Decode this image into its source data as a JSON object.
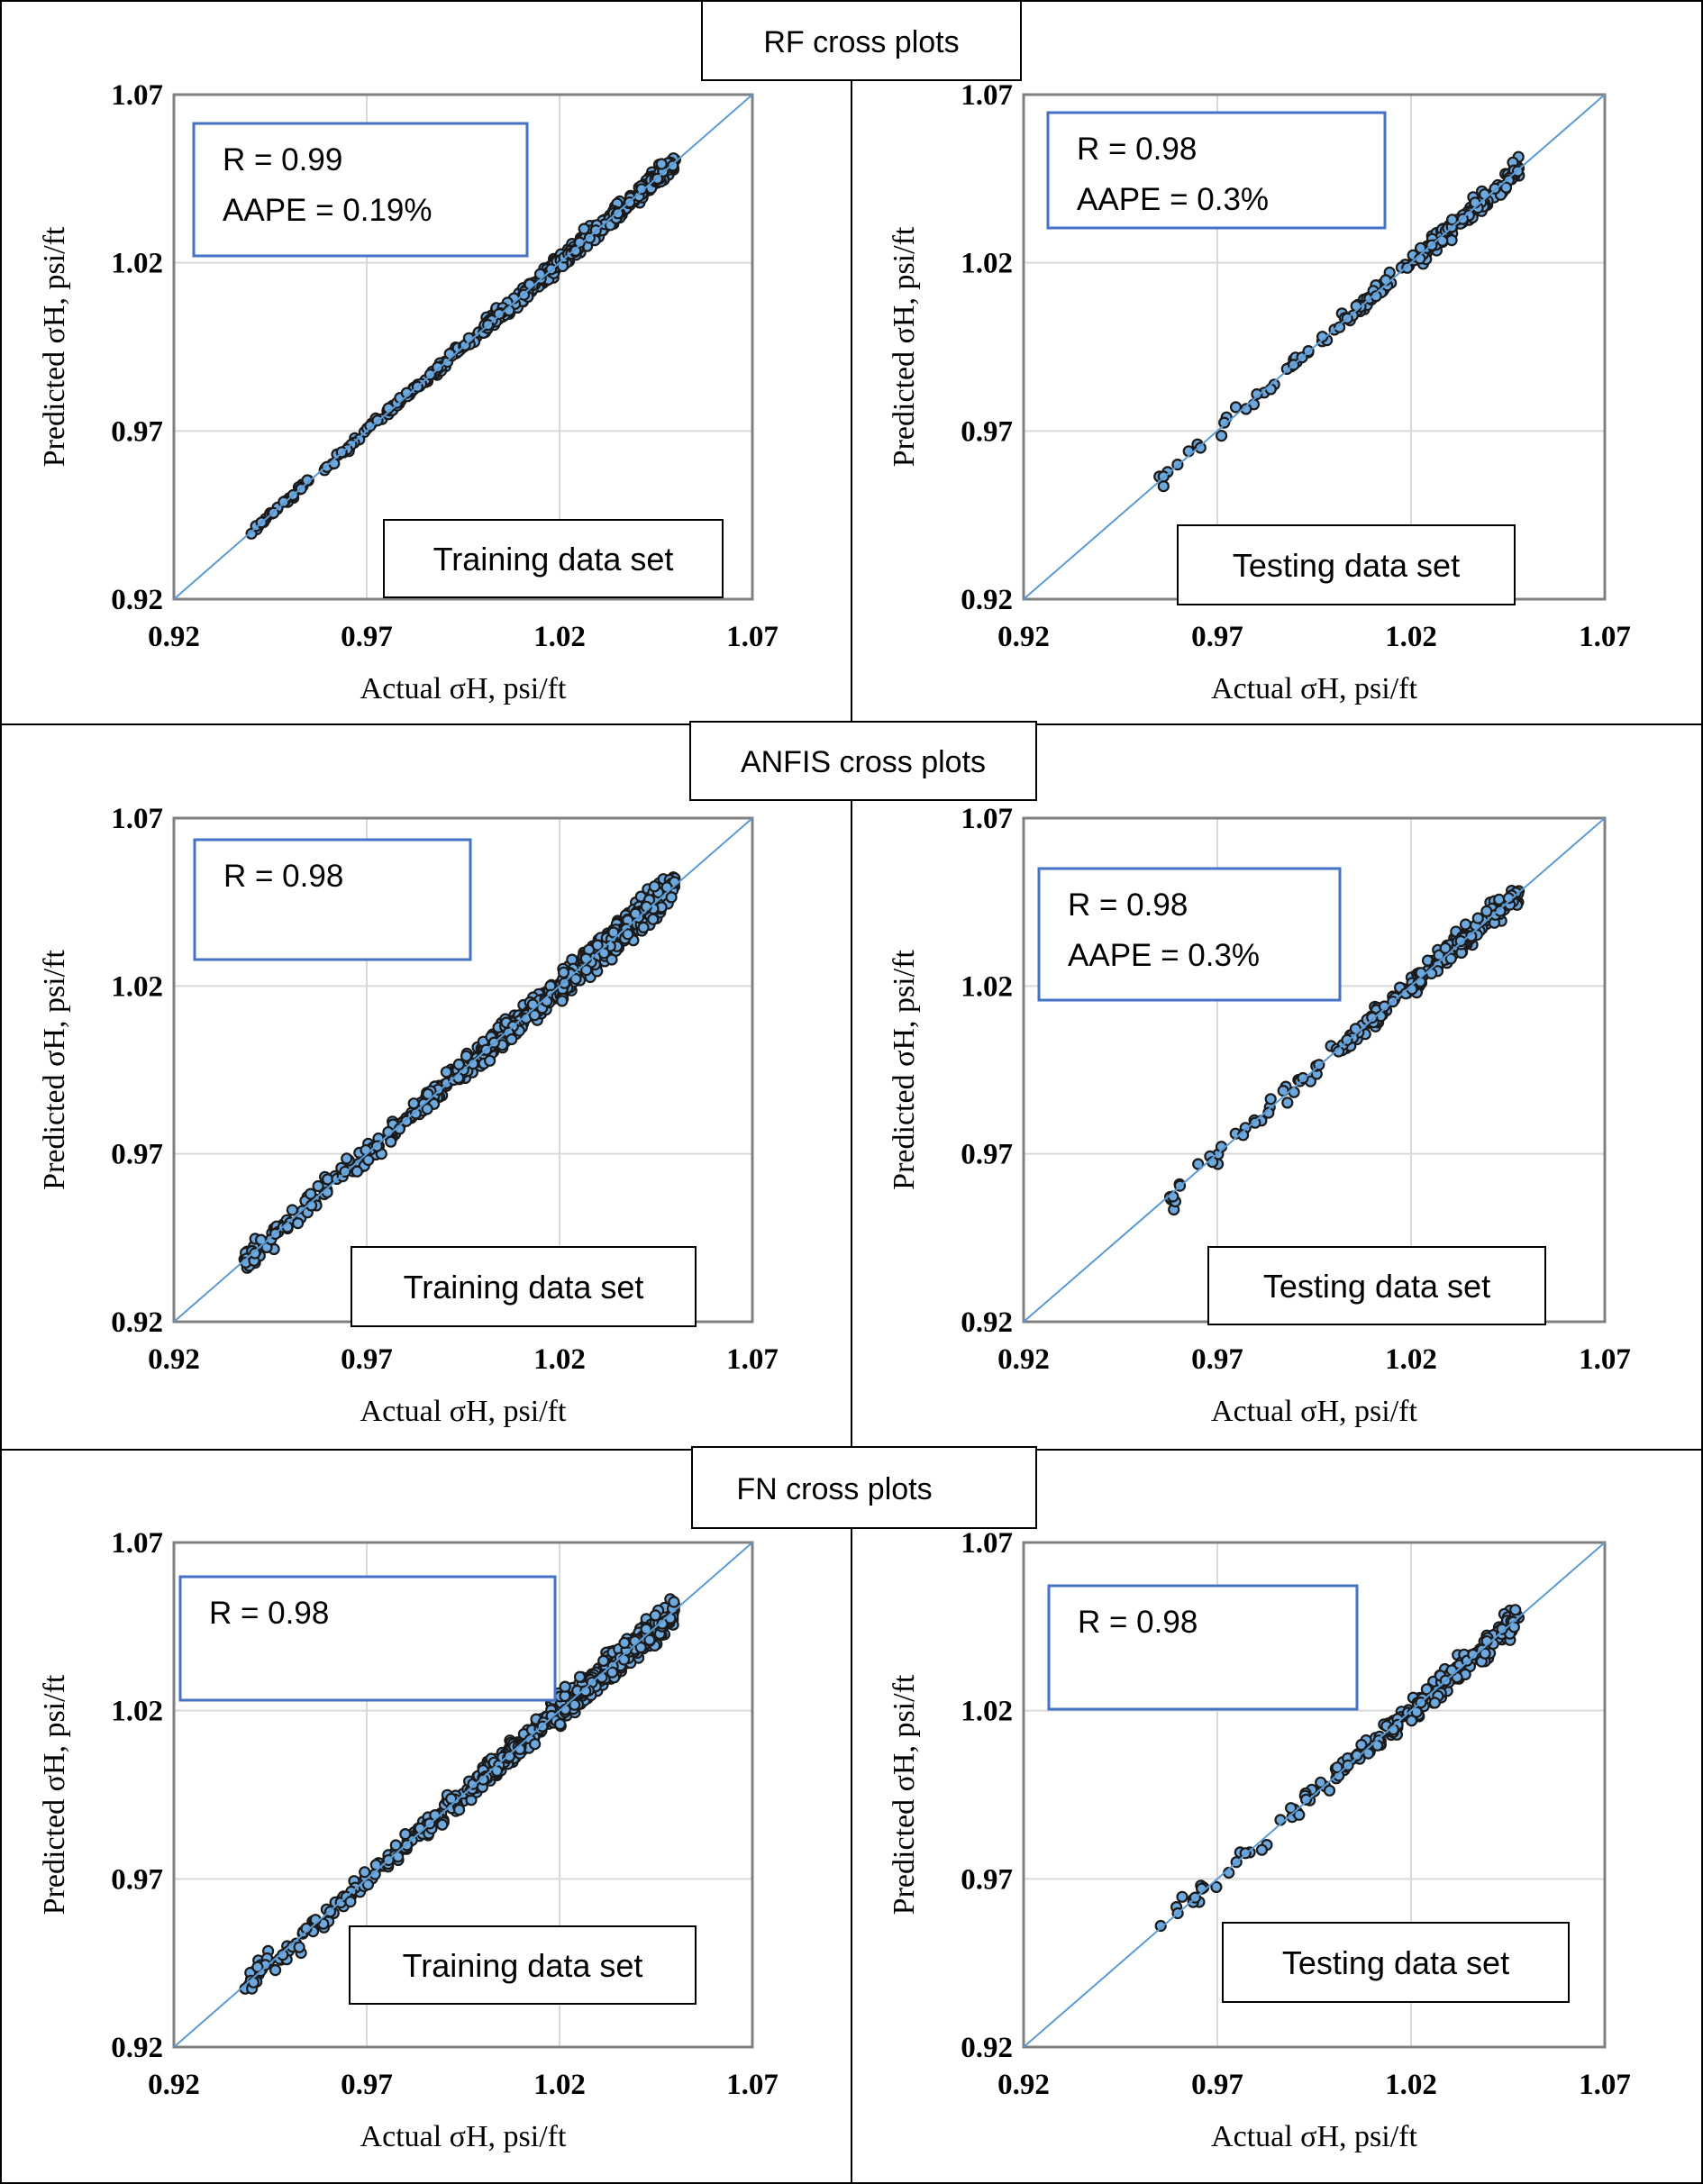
{
  "colors": {
    "frame": "#000000",
    "axis": "#808080",
    "grid": "#d9d9d9",
    "marker_fill": "#6fa8dc",
    "marker_edge": "#1a1a1a",
    "fit_line": "#5b9bd5",
    "stat_box": "#4472c4"
  },
  "sections": [
    {
      "title": "RF cross plots"
    },
    {
      "title": "ANFIS cross plots"
    },
    {
      "title": "FN cross plots"
    }
  ],
  "chart_data": [
    {
      "type": "scatter",
      "model": "RF",
      "dataset": "Training data set",
      "stats": [
        "R = 0.99",
        "AAPE = 0.19%"
      ],
      "title": "",
      "xlabel": "Actual σH, psi/ft",
      "ylabel": "Predicted σH, psi/ft",
      "xlim": [
        0.92,
        1.07
      ],
      "ylim": [
        0.92,
        1.07
      ],
      "xticks": [
        "0.92",
        "0.97",
        "1.02",
        "1.07"
      ],
      "yticks": [
        "0.92",
        "0.97",
        "1.02",
        "1.07"
      ],
      "grid": true,
      "diagonal": [
        0.92,
        1.07
      ],
      "clusters": [
        {
          "x": [
            0.94,
            0.948
          ],
          "spread": 0.0008,
          "count": 14
        },
        {
          "x": [
            0.948,
            0.975
          ],
          "spread": 0.001,
          "count": 40
        },
        {
          "x": [
            0.975,
            1.0
          ],
          "spread": 0.0012,
          "count": 70
        },
        {
          "x": [
            1.0,
            1.02
          ],
          "spread": 0.002,
          "count": 140
        },
        {
          "x": [
            1.02,
            1.05
          ],
          "spread": 0.0025,
          "count": 260
        }
      ]
    },
    {
      "type": "scatter",
      "model": "RF",
      "dataset": "Testing data set",
      "stats": [
        "R = 0.98",
        "AAPE = 0.3%"
      ],
      "title": "",
      "xlabel": "Actual σH, psi/ft",
      "ylabel": "Predicted σH, psi/ft",
      "xlim": [
        0.92,
        1.07
      ],
      "ylim": [
        0.92,
        1.07
      ],
      "xticks": [
        "0.92",
        "0.97",
        "1.02",
        "1.07"
      ],
      "yticks": [
        "0.92",
        "0.97",
        "1.02",
        "1.07"
      ],
      "grid": true,
      "diagonal": [
        0.92,
        1.07
      ],
      "clusters": [
        {
          "x": [
            0.955,
            0.975
          ],
          "spread": 0.003,
          "count": 12
        },
        {
          "x": [
            0.975,
            1.0
          ],
          "spread": 0.0025,
          "count": 18
        },
        {
          "x": [
            1.0,
            1.02
          ],
          "spread": 0.0025,
          "count": 40
        },
        {
          "x": [
            1.02,
            1.048
          ],
          "spread": 0.0032,
          "count": 120
        }
      ]
    },
    {
      "type": "scatter",
      "model": "ANFIS",
      "dataset": "Training data set",
      "stats": [
        "R = 0.98"
      ],
      "title": "",
      "xlabel": "Actual σH, psi/ft",
      "ylabel": "Predicted σH, psi/ft",
      "xlim": [
        0.92,
        1.07
      ],
      "ylim": [
        0.92,
        1.07
      ],
      "xticks": [
        "0.92",
        "0.97",
        "1.02",
        "1.07"
      ],
      "yticks": [
        "0.92",
        "0.97",
        "1.02",
        "1.07"
      ],
      "grid": true,
      "diagonal": [
        0.92,
        1.07
      ],
      "clusters": [
        {
          "x": [
            0.938,
            0.946
          ],
          "spread": 0.004,
          "count": 25
        },
        {
          "x": [
            0.946,
            0.975
          ],
          "spread": 0.0035,
          "count": 60
        },
        {
          "x": [
            0.975,
            1.0
          ],
          "spread": 0.003,
          "count": 90
        },
        {
          "x": [
            1.0,
            1.02
          ],
          "spread": 0.0035,
          "count": 180
        },
        {
          "x": [
            1.02,
            1.05
          ],
          "spread": 0.004,
          "count": 320
        }
      ]
    },
    {
      "type": "scatter",
      "model": "ANFIS",
      "dataset": "Testing data set",
      "stats": [
        "R = 0.98",
        "AAPE = 0.3%"
      ],
      "title": "",
      "xlabel": "Actual σH, psi/ft",
      "ylabel": "Predicted σH, psi/ft",
      "xlim": [
        0.92,
        1.07
      ],
      "ylim": [
        0.92,
        1.07
      ],
      "xticks": [
        "0.92",
        "0.97",
        "1.02",
        "1.07"
      ],
      "yticks": [
        "0.92",
        "0.97",
        "1.02",
        "1.07"
      ],
      "grid": true,
      "diagonal": [
        0.92,
        1.07
      ],
      "clusters": [
        {
          "x": [
            0.955,
            0.975
          ],
          "spread": 0.004,
          "count": 14
        },
        {
          "x": [
            0.975,
            1.0
          ],
          "spread": 0.003,
          "count": 20
        },
        {
          "x": [
            1.0,
            1.02
          ],
          "spread": 0.003,
          "count": 45
        },
        {
          "x": [
            1.02,
            1.048
          ],
          "spread": 0.0035,
          "count": 130
        }
      ]
    },
    {
      "type": "scatter",
      "model": "FN",
      "dataset": "Training data set",
      "stats": [
        "R = 0.98"
      ],
      "title": "",
      "xlabel": "Actual σH, psi/ft",
      "ylabel": "Predicted σH, psi/ft",
      "xlim": [
        0.92,
        1.07
      ],
      "ylim": [
        0.92,
        1.07
      ],
      "xticks": [
        "0.92",
        "0.97",
        "1.02",
        "1.07"
      ],
      "yticks": [
        "0.92",
        "0.97",
        "1.02",
        "1.07"
      ],
      "grid": true,
      "diagonal": [
        0.92,
        1.07
      ],
      "clusters": [
        {
          "x": [
            0.938,
            0.948
          ],
          "spread": 0.003,
          "count": 25
        },
        {
          "x": [
            0.948,
            0.975
          ],
          "spread": 0.0035,
          "count": 55
        },
        {
          "x": [
            0.975,
            1.0
          ],
          "spread": 0.003,
          "count": 90
        },
        {
          "x": [
            1.0,
            1.02
          ],
          "spread": 0.0035,
          "count": 170
        },
        {
          "x": [
            1.02,
            1.05
          ],
          "spread": 0.004,
          "count": 320
        }
      ]
    },
    {
      "type": "scatter",
      "model": "FN",
      "dataset": "Testing data set",
      "stats": [
        "R = 0.98"
      ],
      "title": "",
      "xlabel": "Actual σH, psi/ft",
      "ylabel": "Predicted σH, psi/ft",
      "xlim": [
        0.92,
        1.07
      ],
      "ylim": [
        0.92,
        1.07
      ],
      "xticks": [
        "0.92",
        "0.97",
        "1.02",
        "1.07"
      ],
      "yticks": [
        "0.92",
        "0.97",
        "1.02",
        "1.07"
      ],
      "grid": true,
      "diagonal": [
        0.92,
        1.07
      ],
      "clusters": [
        {
          "x": [
            0.955,
            0.975
          ],
          "spread": 0.0035,
          "count": 14
        },
        {
          "x": [
            0.975,
            1.0
          ],
          "spread": 0.0028,
          "count": 22
        },
        {
          "x": [
            1.0,
            1.02
          ],
          "spread": 0.0028,
          "count": 50
        },
        {
          "x": [
            1.02,
            1.048
          ],
          "spread": 0.0035,
          "count": 140
        }
      ]
    }
  ]
}
